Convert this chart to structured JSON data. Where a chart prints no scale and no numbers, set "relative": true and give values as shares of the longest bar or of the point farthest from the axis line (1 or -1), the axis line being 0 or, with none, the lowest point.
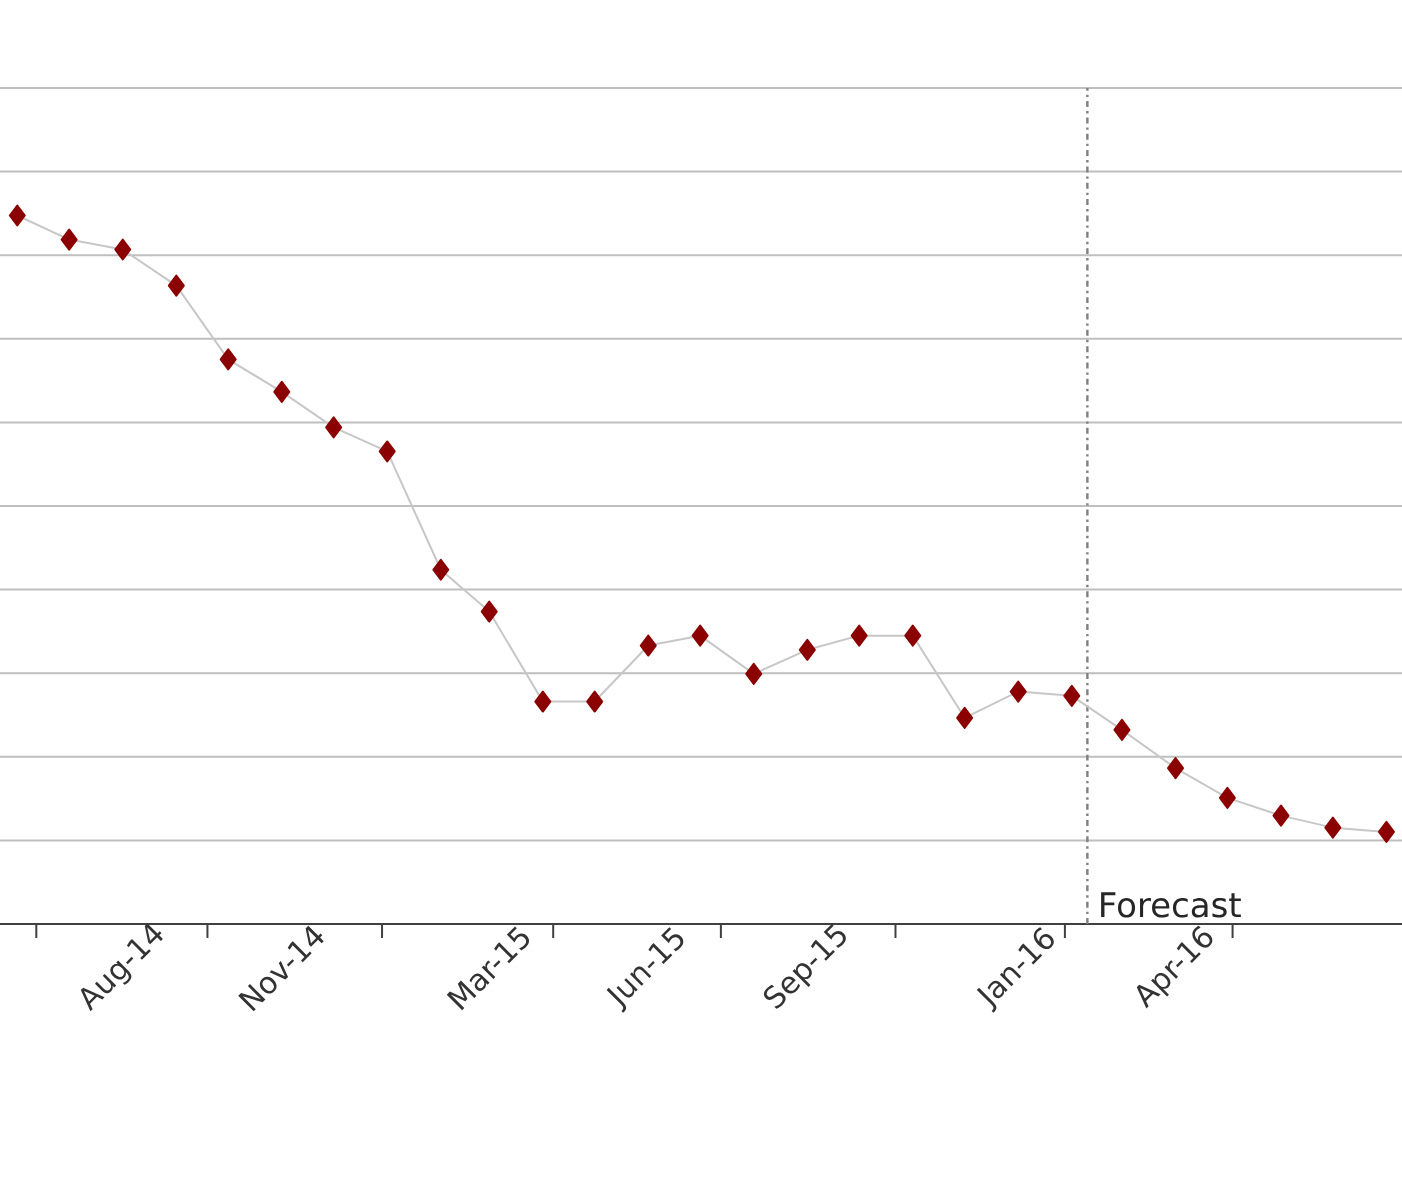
{
  "chart_data": {
    "type": "line",
    "relative": true,
    "grid": "y",
    "marker": "diamond",
    "line_style": "solid",
    "x": [
      "2014-06",
      "2014-07",
      "2014-08",
      "2014-09",
      "2014-10",
      "2014-11",
      "2014-12",
      "2015-01",
      "2015-02",
      "2015-03",
      "2015-04",
      "2015-05",
      "2015-06",
      "2015-07",
      "2015-08",
      "2015-09",
      "2015-10",
      "2015-11",
      "2015-12",
      "2016-01",
      "2016-02",
      "2016-03",
      "2016-04",
      "2016-05",
      "2016-06",
      "2016-07",
      "2016-08"
    ],
    "xlim": [
      "2014-05-22",
      "2016-08-10"
    ],
    "xticks": [
      {
        "value": "2014-06-12",
        "label": null
      },
      {
        "value": "2014-08",
        "label": "Aug-14"
      },
      {
        "value": "2014-09-19",
        "label": null
      },
      {
        "value": "2014-11",
        "label": "Nov-14"
      },
      {
        "value": "2014-12-29",
        "label": null
      },
      {
        "value": "2015-03",
        "label": "Mar-15"
      },
      {
        "value": "2015-04-07",
        "label": null
      },
      {
        "value": "2015-06",
        "label": "Jun-15"
      },
      {
        "value": "2015-07-13",
        "label": null
      },
      {
        "value": "2015-09",
        "label": "Sep-15"
      },
      {
        "value": "2015-10-22",
        "label": null
      },
      {
        "value": "2016-01",
        "label": "Jan-16"
      },
      {
        "value": "2016-01-28",
        "label": null
      },
      {
        "value": "2016-04",
        "label": "Apr-16"
      },
      {
        "value": "2016-05-04",
        "label": null
      }
    ],
    "series": [
      {
        "color": "#8b0000",
        "values": [
          1.0,
          0.966,
          0.952,
          0.901,
          0.797,
          0.751,
          0.701,
          0.667,
          0.5,
          0.441,
          0.314,
          0.314,
          0.393,
          0.407,
          0.353,
          0.387,
          0.407,
          0.407,
          0.291,
          0.328,
          0.322,
          0.274,
          0.22,
          0.178,
          0.153,
          0.136,
          0.13
        ]
      }
    ],
    "ref_lines": [
      {
        "axis": "x",
        "value": "2016-02-10",
        "label": "Forecast",
        "color": "#808080"
      }
    ]
  }
}
